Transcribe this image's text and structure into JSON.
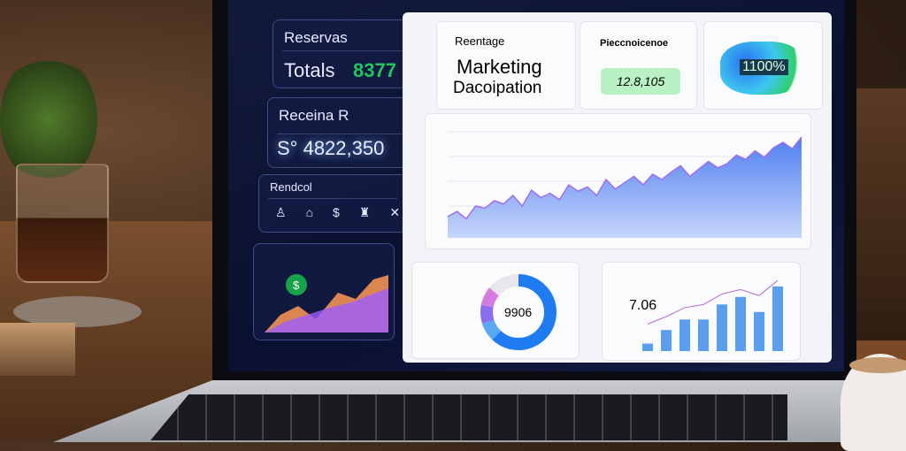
{
  "left_panel": {
    "reservas": {
      "label": "Reservas",
      "value_prefix": "Totals",
      "value": "8377",
      "value_color": "#22c55e"
    },
    "receita": {
      "label": "Receina R",
      "value": "S° 4822,350"
    },
    "control": {
      "label": "Rendcol",
      "icons": [
        "person-icon",
        "cake-icon",
        "coin-icon",
        "bottle-icon",
        "x-icon"
      ]
    },
    "mini_chart": {
      "badge_icon": "dollar-icon",
      "colors": [
        "#ff7a45",
        "#ffb347",
        "#9b5cff",
        "#ff4fa0"
      ]
    }
  },
  "main_panel": {
    "header_card": {
      "subtitle": "Reentage",
      "title_line1": "Marketing",
      "title_line2": "Dacoipation"
    },
    "metric_card": {
      "label": "Pieccnoicenoe",
      "value": "12.8,105"
    },
    "blob_card": {
      "value": "1100%"
    },
    "area_chart": {
      "values": [
        20,
        25,
        18,
        30,
        28,
        35,
        32,
        40,
        30,
        45,
        38,
        42,
        36,
        50,
        44,
        48,
        40,
        55,
        46,
        52,
        58,
        50,
        60,
        55,
        62,
        68,
        58,
        65,
        72,
        66,
        70,
        78,
        74,
        82,
        76,
        85,
        90,
        84,
        95
      ],
      "colors": [
        "#5b8def",
        "#a06cf0"
      ]
    },
    "donut_card": {
      "value": "9906",
      "segments": [
        {
          "color": "#1e7bf0",
          "value": 62
        },
        {
          "color": "#5aa8f5",
          "value": 8
        },
        {
          "color": "#8a6df0",
          "value": 8
        },
        {
          "color": "#d67be0",
          "value": 8
        },
        {
          "color": "#e8e8ec",
          "value": 14
        }
      ]
    },
    "bar_card": {
      "value": "7.06",
      "bars": [
        10,
        28,
        42,
        42,
        62,
        72,
        52,
        86
      ],
      "line": [
        30,
        40,
        52,
        56,
        70,
        76,
        68,
        88
      ],
      "bar_color": "#5b9ef0"
    }
  }
}
